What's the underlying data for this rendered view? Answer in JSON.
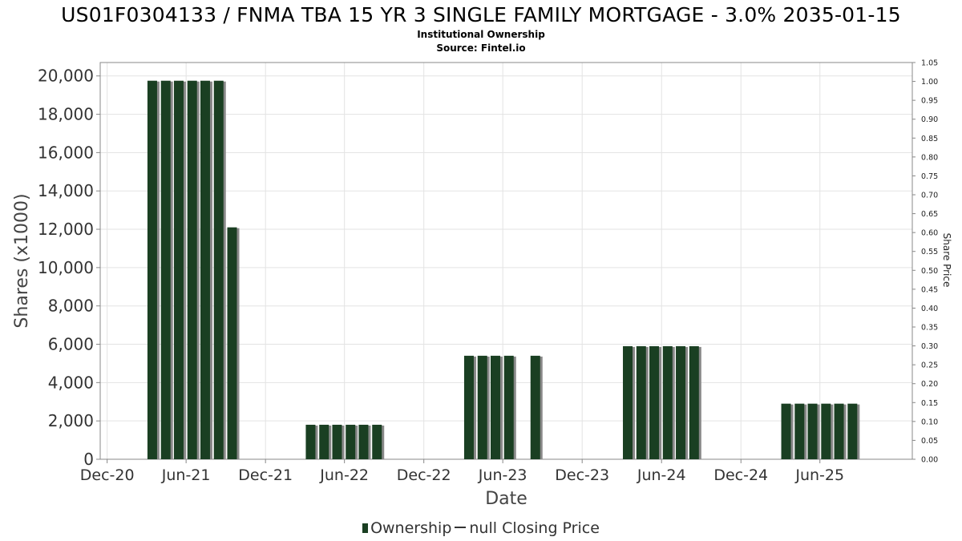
{
  "title": "US01F0304133 / FNMA TBA 15 YR 3 SINGLE FAMILY MORTGAGE - 3.0% 2035-01-15",
  "subtitle1": "Institutional Ownership",
  "subtitle2": "Source: Fintel.io",
  "legend": {
    "ownership": "Ownership",
    "closing_price": "null Closing Price"
  },
  "colors": {
    "bar": "#1a3f22",
    "bar_shadow": "#888888",
    "grid": "#e3e3e3",
    "axis": "#888888"
  },
  "chart_data": {
    "type": "bar",
    "xlabel": "Date",
    "ylabel": "Shares (x1000)",
    "y2label": "Share Price",
    "ylim": [
      0,
      20700
    ],
    "y2lim": [
      0,
      1.05
    ],
    "y_ticks": [
      0,
      2000,
      4000,
      6000,
      8000,
      10000,
      12000,
      14000,
      16000,
      18000,
      20000
    ],
    "y_tick_labels": [
      "0",
      "2,000",
      "4,000",
      "6,000",
      "8,000",
      "10,000",
      "12,000",
      "14,000",
      "16,000",
      "18,000",
      "20,000"
    ],
    "y2_ticks": [
      "0.00",
      "0.05",
      "0.10",
      "0.15",
      "0.20",
      "0.25",
      "0.30",
      "0.35",
      "0.40",
      "0.45",
      "0.50",
      "0.55",
      "0.60",
      "0.65",
      "0.70",
      "0.75",
      "0.80",
      "0.85",
      "0.90",
      "0.95",
      "1.00",
      "1.05"
    ],
    "x_ticks": [
      "2020-12-01",
      "2021-06-01",
      "2021-12-01",
      "2022-06-01",
      "2022-12-01",
      "2023-06-01",
      "2023-12-01",
      "2024-06-01",
      "2024-12-01",
      "2025-06-01"
    ],
    "x_tick_labels": [
      "Dec-20",
      "Jun-21",
      "Dec-21",
      "Jun-22",
      "Dec-22",
      "Jun-23",
      "Dec-23",
      "Jun-24",
      "Dec-24",
      "Jun-25"
    ],
    "xlim": [
      "2020-11-15",
      "2025-12-31"
    ],
    "grid": true,
    "legend_position": "bottom-center",
    "series": [
      {
        "name": "Ownership",
        "points": [
          {
            "date": "2021-03-15",
            "value": 19750
          },
          {
            "date": "2021-04-15",
            "value": 19750
          },
          {
            "date": "2021-05-15",
            "value": 19750
          },
          {
            "date": "2021-06-15",
            "value": 19750
          },
          {
            "date": "2021-07-15",
            "value": 19750
          },
          {
            "date": "2021-08-15",
            "value": 19750
          },
          {
            "date": "2021-09-15",
            "value": 12100
          },
          {
            "date": "2022-03-15",
            "value": 1800
          },
          {
            "date": "2022-04-15",
            "value": 1800
          },
          {
            "date": "2022-05-15",
            "value": 1800
          },
          {
            "date": "2022-06-15",
            "value": 1800
          },
          {
            "date": "2022-07-15",
            "value": 1800
          },
          {
            "date": "2022-08-15",
            "value": 1800
          },
          {
            "date": "2023-03-15",
            "value": 5400
          },
          {
            "date": "2023-04-15",
            "value": 5400
          },
          {
            "date": "2023-05-15",
            "value": 5400
          },
          {
            "date": "2023-06-15",
            "value": 5400
          },
          {
            "date": "2023-08-15",
            "value": 5400
          },
          {
            "date": "2024-03-15",
            "value": 5900
          },
          {
            "date": "2024-04-15",
            "value": 5900
          },
          {
            "date": "2024-05-15",
            "value": 5900
          },
          {
            "date": "2024-06-15",
            "value": 5900
          },
          {
            "date": "2024-07-15",
            "value": 5900
          },
          {
            "date": "2024-08-15",
            "value": 5900
          },
          {
            "date": "2025-03-15",
            "value": 2900
          },
          {
            "date": "2025-04-15",
            "value": 2900
          },
          {
            "date": "2025-05-15",
            "value": 2900
          },
          {
            "date": "2025-06-15",
            "value": 2900
          },
          {
            "date": "2025-07-15",
            "value": 2900
          },
          {
            "date": "2025-08-15",
            "value": 2900
          }
        ]
      },
      {
        "name": "null Closing Price",
        "points": []
      }
    ]
  }
}
